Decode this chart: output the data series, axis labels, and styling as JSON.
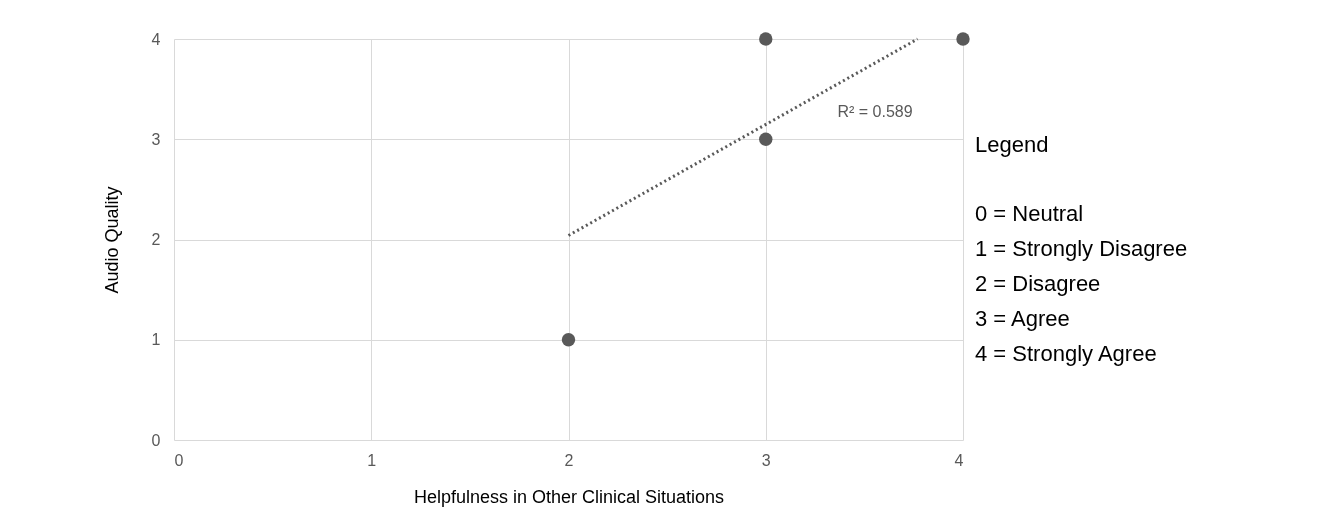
{
  "chart_data": {
    "type": "scatter",
    "xlabel": "Helpfulness in Other Clinical Situations",
    "ylabel": "Audio Quality",
    "xlim": [
      0,
      4
    ],
    "ylim": [
      0,
      4
    ],
    "xticks": [
      0,
      1,
      2,
      3,
      4
    ],
    "yticks": [
      0,
      1,
      2,
      3,
      4
    ],
    "grid": true,
    "marker": "circle",
    "series": [
      {
        "type": "scatter",
        "color": "#595959",
        "x": [
          2,
          3,
          3,
          4
        ],
        "values": [
          1,
          3,
          4,
          4
        ]
      },
      {
        "type": "line",
        "color": "#595959",
        "x": [
          2,
          3.77
        ],
        "values": [
          2.04,
          4
        ],
        "line_style": "dotted",
        "marker": "none"
      }
    ],
    "annotations": [
      "R² = 0.589",
      "Legend",
      "0 = Neutral",
      "1 = Strongly Disagree",
      "2 = Disagree",
      "3 = Agree",
      "4 = Strongly Agree"
    ]
  }
}
